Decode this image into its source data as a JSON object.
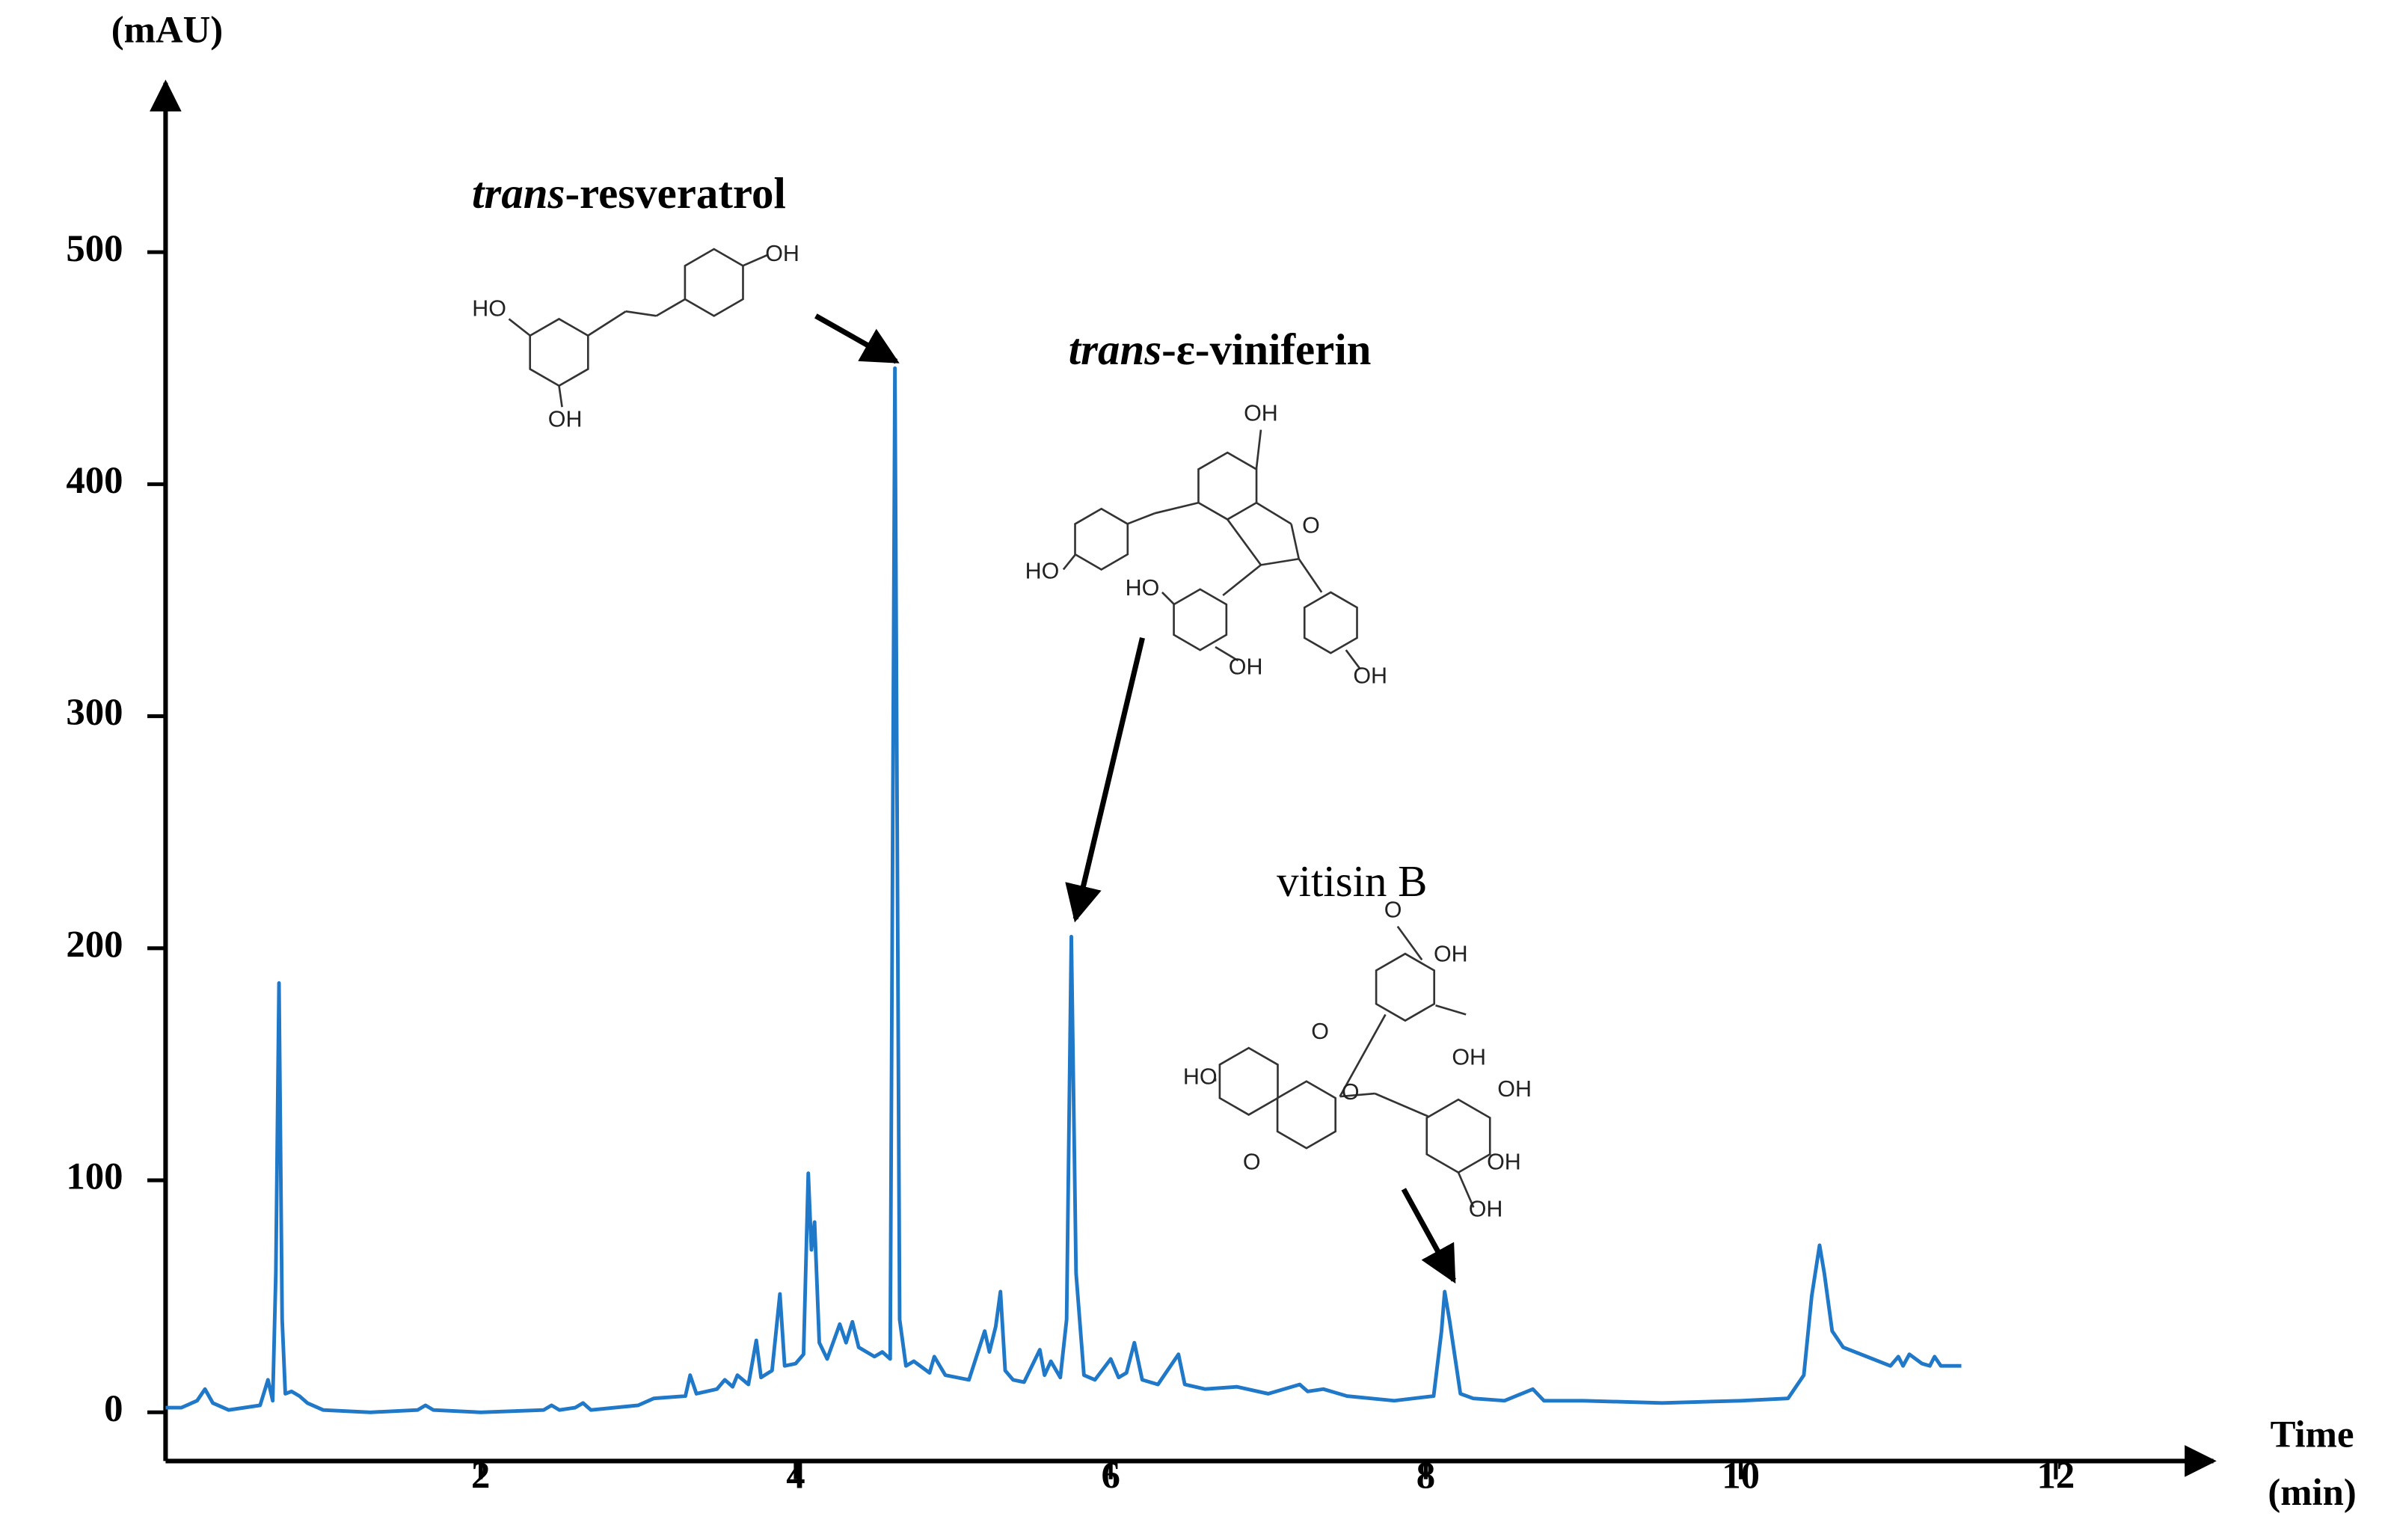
{
  "chart_data": {
    "type": "line",
    "y_label": "(mAU)",
    "x_label_lines": [
      "Time",
      "(min)"
    ],
    "xlim": [
      0,
      13
    ],
    "ylim": [
      -21,
      573
    ],
    "xticks": [
      2,
      4,
      6,
      8,
      10,
      12
    ],
    "yticks": [
      0,
      100,
      200,
      300,
      400,
      500
    ],
    "x": [
      0,
      0.1,
      0.2,
      0.25,
      0.3,
      0.4,
      0.6,
      0.65,
      0.68,
      0.7,
      0.72,
      0.74,
      0.76,
      0.8,
      0.85,
      0.9,
      1.0,
      1.3,
      1.6,
      1.65,
      1.7,
      2.0,
      2.4,
      2.45,
      2.5,
      2.6,
      2.65,
      2.7,
      3.0,
      3.1,
      3.3,
      3.33,
      3.37,
      3.5,
      3.55,
      3.6,
      3.63,
      3.7,
      3.75,
      3.78,
      3.85,
      3.9,
      3.93,
      4.0,
      4.05,
      4.08,
      4.1,
      4.12,
      4.15,
      4.2,
      4.28,
      4.32,
      4.36,
      4.4,
      4.5,
      4.55,
      4.6,
      4.63,
      4.66,
      4.7,
      4.75,
      4.85,
      4.88,
      4.95,
      5.1,
      5.2,
      5.23,
      5.27,
      5.3,
      5.33,
      5.38,
      5.45,
      5.55,
      5.58,
      5.62,
      5.68,
      5.72,
      5.75,
      5.78,
      5.83,
      5.9,
      6.0,
      6.05,
      6.1,
      6.15,
      6.2,
      6.3,
      6.43,
      6.47,
      6.6,
      6.8,
      7.0,
      7.2,
      7.25,
      7.35,
      7.5,
      7.8,
      8.05,
      8.1,
      8.12,
      8.15,
      8.22,
      8.3,
      8.5,
      8.68,
      8.75,
      9.0,
      9.5,
      10.0,
      10.3,
      10.4,
      10.45,
      10.5,
      10.53,
      10.58,
      10.65,
      10.8,
      10.95,
      11.0,
      11.03,
      11.07,
      11.15,
      11.2,
      11.23,
      11.27,
      11.4
    ],
    "series": [
      {
        "color": "#1f78c8",
        "values": [
          2,
          2,
          5,
          10,
          4,
          1,
          3,
          14,
          5,
          60,
          185,
          40,
          8,
          9,
          7,
          4,
          1,
          0,
          1,
          3,
          1,
          0,
          1,
          3,
          1,
          2,
          4,
          1,
          3,
          6,
          7,
          16,
          8,
          10,
          14,
          11,
          16,
          12,
          31,
          15,
          18,
          51,
          20,
          21,
          25,
          103,
          70,
          82,
          30,
          23,
          38,
          30,
          39,
          28,
          24,
          26,
          23,
          450,
          40,
          20,
          22,
          17,
          24,
          16,
          14,
          35,
          26,
          37,
          52,
          18,
          14,
          13,
          27,
          16,
          22,
          15,
          40,
          205,
          60,
          16,
          14,
          23,
          15,
          17,
          30,
          14,
          12,
          25,
          12,
          10,
          11,
          8,
          12,
          9,
          10,
          7,
          5,
          7,
          35,
          52,
          40,
          8,
          6,
          5,
          10,
          5,
          5,
          4,
          5,
          6,
          16,
          50,
          72,
          60,
          35,
          28,
          24,
          20,
          24,
          20,
          25,
          21,
          20,
          24,
          20,
          20
        ]
      }
    ],
    "annotations": [
      {
        "italic": "trans",
        "label": "-resveratrol",
        "structure_labels": [
          "HO",
          "OH",
          "OH"
        ]
      },
      {
        "italic": "trans",
        "label": "-ε-viniferin",
        "structure_labels": [
          "OH",
          "HO",
          "O",
          "HO",
          "OH",
          "OH"
        ]
      },
      {
        "label": "vitisin B",
        "structure_labels": [
          "O",
          "OH",
          "O",
          "HO",
          "O",
          "OH",
          "OH",
          "OH",
          "O",
          "OH"
        ]
      }
    ]
  }
}
